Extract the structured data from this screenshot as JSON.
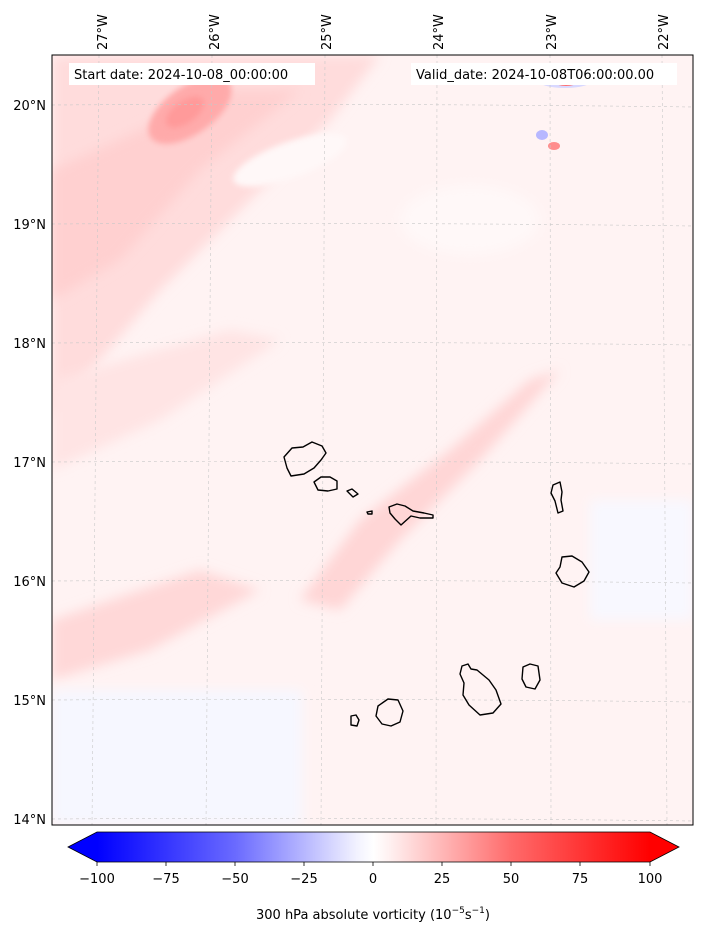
{
  "header": {
    "start_date": "Start date: 2024-10-08_00:00:00",
    "valid_date": "Valid_date: 2024-10-08T06:00:00.00"
  },
  "map": {
    "region": "Cape Verde islands",
    "lon_labels": [
      "27°W",
      "26°W",
      "25°W",
      "24°W",
      "23°W",
      "22°W"
    ],
    "lat_labels": [
      "20°N",
      "19°N",
      "18°N",
      "17°N",
      "16°N",
      "15°N",
      "14°N"
    ],
    "gridlines": true,
    "coastline_color": "#000000"
  },
  "colorbar": {
    "tick_labels": [
      "−100",
      "−75",
      "−50",
      "−25",
      "0",
      "25",
      "50",
      "75",
      "100"
    ],
    "min_value": -100,
    "max_value": 100,
    "extend": "both",
    "low_color": "#0000ff",
    "mid_color": "#ffffff",
    "high_color": "#ff0000",
    "label": "300 hPa absolute vorticity (10",
    "label_exp1": "−5",
    "label_mid": "s",
    "label_exp2": "−1",
    "label_end": ")"
  },
  "chart_data": {
    "type": "heatmap",
    "field": "300 hPa absolute vorticity",
    "units": "10^-5 s^-1",
    "xlim_deg_w": [
      27.35,
      21.9
    ],
    "ylim_deg_n": [
      13.95,
      20.42
    ],
    "colorscale_range": [
      -100,
      100
    ],
    "features": [
      {
        "description": "positive vorticity maximum",
        "lon_w": 26.2,
        "lat_n": 19.9,
        "value": 30
      },
      {
        "description": "positive vorticity band NW region",
        "value": 15
      },
      {
        "description": "SW-NE positive band through 24.5°W 16.5°N",
        "value": 12
      },
      {
        "description": "weak negative area south",
        "value": -5
      },
      {
        "description": "small dipole",
        "lon_w": 22.9,
        "lat_n": 19.7,
        "values": [
          -25,
          30
        ]
      }
    ]
  }
}
